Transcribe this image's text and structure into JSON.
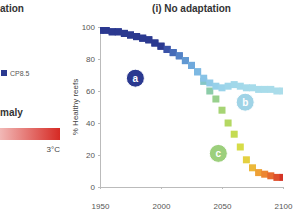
{
  "chart_data": {
    "type": "scatter",
    "title": "(i) No adaptation",
    "y_label": "% Healthy reefs",
    "x": [
      1950,
      1955,
      1960,
      1965,
      1970,
      1975,
      1980,
      1985,
      1990,
      1995,
      2000,
      2005,
      2010,
      2015,
      2020,
      2025,
      2030,
      2035,
      2040,
      2045,
      2050,
      2055,
      2060,
      2065,
      2070,
      2075,
      2080,
      2085,
      2090,
      2095,
      2100
    ],
    "xlim": [
      1950,
      2100
    ],
    "xticks": [
      1950,
      2000,
      2050,
      2100
    ],
    "ylim": [
      0,
      100
    ],
    "yticks": [
      0,
      20,
      40,
      60,
      80,
      100
    ],
    "marker": "square",
    "series": [
      {
        "values": [
          98,
          98,
          97,
          97,
          96,
          95,
          94,
          93,
          92,
          90,
          88,
          86,
          84,
          82,
          79,
          76,
          72,
          66,
          60,
          55,
          48,
          40,
          33,
          25,
          17,
          12,
          9,
          8,
          7,
          6,
          6
        ],
        "colors": [
          "#2b3990",
          "#2b3990",
          "#2b3990",
          "#2b3990",
          "#2b3990",
          "#2b3990",
          "#2b3990",
          "#2b3990",
          "#2b3990",
          "#2b3990",
          "#2b3990",
          "#3a52a8",
          "#456bb8",
          "#5382c6",
          "#6198d2",
          "#6fa9dc",
          "#7db8e2",
          "#84c6c6",
          "#8ccca8",
          "#98d08c",
          "#a6d474",
          "#b4d862",
          "#c4db52",
          "#d6dc48",
          "#e4d040",
          "#ecb83a",
          "#eea036",
          "#ec8632",
          "#e66a2e",
          "#de4e2a",
          "#d43426"
        ]
      },
      {
        "values": [
          98,
          98,
          97,
          97,
          96,
          95,
          94,
          93,
          92,
          90,
          88,
          86,
          84,
          82,
          79,
          76,
          72,
          68,
          65,
          63,
          62,
          63,
          64,
          63,
          62,
          62,
          61,
          61,
          61,
          60,
          60
        ],
        "colors": [
          "#2b3990",
          "#2b3990",
          "#2b3990",
          "#2b3990",
          "#2b3990",
          "#2b3990",
          "#2b3990",
          "#2b3990",
          "#2b3990",
          "#2b3990",
          "#2b3990",
          "#3a52a8",
          "#456bb8",
          "#5382c6",
          "#6198d2",
          "#6fa9dc",
          "#7db8e2",
          "#88c3e6",
          "#90cae8",
          "#96d0e9",
          "#9ad3ea",
          "#9ed6ea",
          "#a1d8ea",
          "#a3d9ea",
          "#a5daea",
          "#a6dbea",
          "#a7dbea",
          "#a8dcea",
          "#a9dcea",
          "#aadcea",
          "#abddea"
        ]
      }
    ],
    "annotations": [
      {
        "text": "a",
        "x": 1979,
        "y": 68,
        "color": "#2b3990"
      },
      {
        "text": "b",
        "x": 2069,
        "y": 53,
        "color": "#9fd3e6"
      },
      {
        "text": "c",
        "x": 2047,
        "y": 21,
        "color": "#9ccf7c"
      }
    ],
    "side_title": "ation",
    "legend_entries": [
      {
        "name": "CP8.5",
        "color": "#2b3990",
        "marker": "square"
      }
    ],
    "colorbar": {
      "title": "maly",
      "range": [
        0,
        3
      ],
      "ticks": [
        {
          "value": 3,
          "label": "3°C"
        }
      ],
      "colors": [
        "#ffffff",
        "#d62a24"
      ]
    }
  }
}
